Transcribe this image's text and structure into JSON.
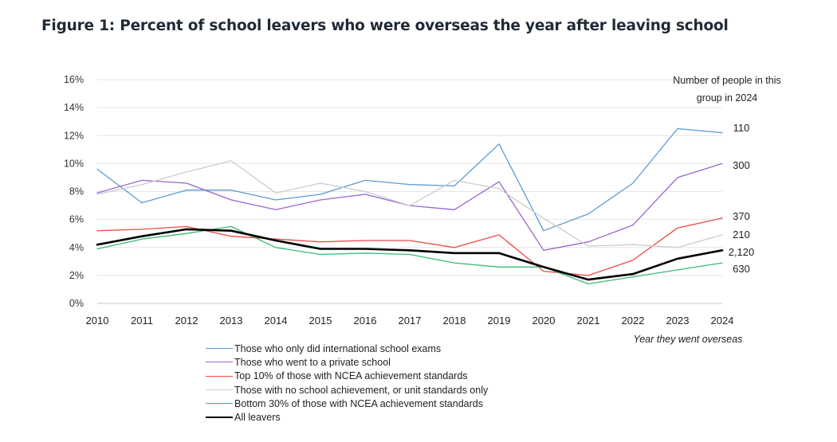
{
  "title": "Figure 1: Percent of school leavers who were overseas the year after leaving school",
  "chart_data": {
    "type": "line",
    "x": [
      2010,
      2011,
      2012,
      2013,
      2014,
      2015,
      2016,
      2017,
      2018,
      2019,
      2020,
      2021,
      2022,
      2023,
      2024
    ],
    "ylim": [
      0,
      16
    ],
    "yticks": [
      "0%",
      "2%",
      "4%",
      "6%",
      "8%",
      "10%",
      "12%",
      "14%",
      "16%"
    ],
    "ytick_values": [
      0,
      2,
      4,
      6,
      8,
      10,
      12,
      14,
      16
    ],
    "xlabel": "Year they went overseas",
    "grid": "horizontal",
    "legend_position": "bottom",
    "end_note": "Number of people in this group in 2024",
    "end_note_lines": [
      "Number of people in this",
      "group in 2024"
    ],
    "series": [
      {
        "name": "Those who only did international school exams",
        "color": "#5b9bd5",
        "width": 1.3,
        "values": [
          9.6,
          7.2,
          8.1,
          8.1,
          7.4,
          7.8,
          8.8,
          8.5,
          8.4,
          11.4,
          5.2,
          6.4,
          8.6,
          12.5,
          12.2
        ],
        "end_label": "110"
      },
      {
        "name": "Those who went to a private school",
        "color": "#9966cc",
        "width": 1.3,
        "values": [
          7.9,
          8.8,
          8.6,
          7.4,
          6.7,
          7.4,
          7.8,
          7.0,
          6.7,
          8.7,
          3.8,
          4.4,
          5.6,
          9.0,
          10.0
        ],
        "end_label": "300"
      },
      {
        "name": "Top 10% of those with NCEA achievement standards",
        "color": "#f04848",
        "width": 1.3,
        "values": [
          5.2,
          5.3,
          5.5,
          4.8,
          4.6,
          4.4,
          4.5,
          4.5,
          4.0,
          4.9,
          2.3,
          2.0,
          3.1,
          5.4,
          6.1
        ],
        "end_label": "370"
      },
      {
        "name": "Those with no school achievement, or unit standards only",
        "color": "#cccccc",
        "width": 1.3,
        "values": [
          7.8,
          8.5,
          9.4,
          10.2,
          7.9,
          8.6,
          8.0,
          7.0,
          8.8,
          8.2,
          6.1,
          4.1,
          4.2,
          4.0,
          4.9
        ],
        "end_label": "210"
      },
      {
        "name": "Bottom 30% of those with NCEA achievement standards",
        "color": "#3cb878",
        "width": 1.3,
        "values": [
          3.9,
          4.6,
          5.0,
          5.5,
          4.0,
          3.5,
          3.6,
          3.5,
          2.9,
          2.6,
          2.6,
          1.4,
          1.9,
          2.4,
          2.9
        ],
        "end_label": "630"
      },
      {
        "name": "All leavers",
        "color": "#000000",
        "width": 2.6,
        "values": [
          4.2,
          4.8,
          5.3,
          5.2,
          4.5,
          3.9,
          3.9,
          3.8,
          3.6,
          3.6,
          2.6,
          1.7,
          2.1,
          3.2,
          3.8
        ],
        "end_label": "2,120"
      }
    ]
  }
}
